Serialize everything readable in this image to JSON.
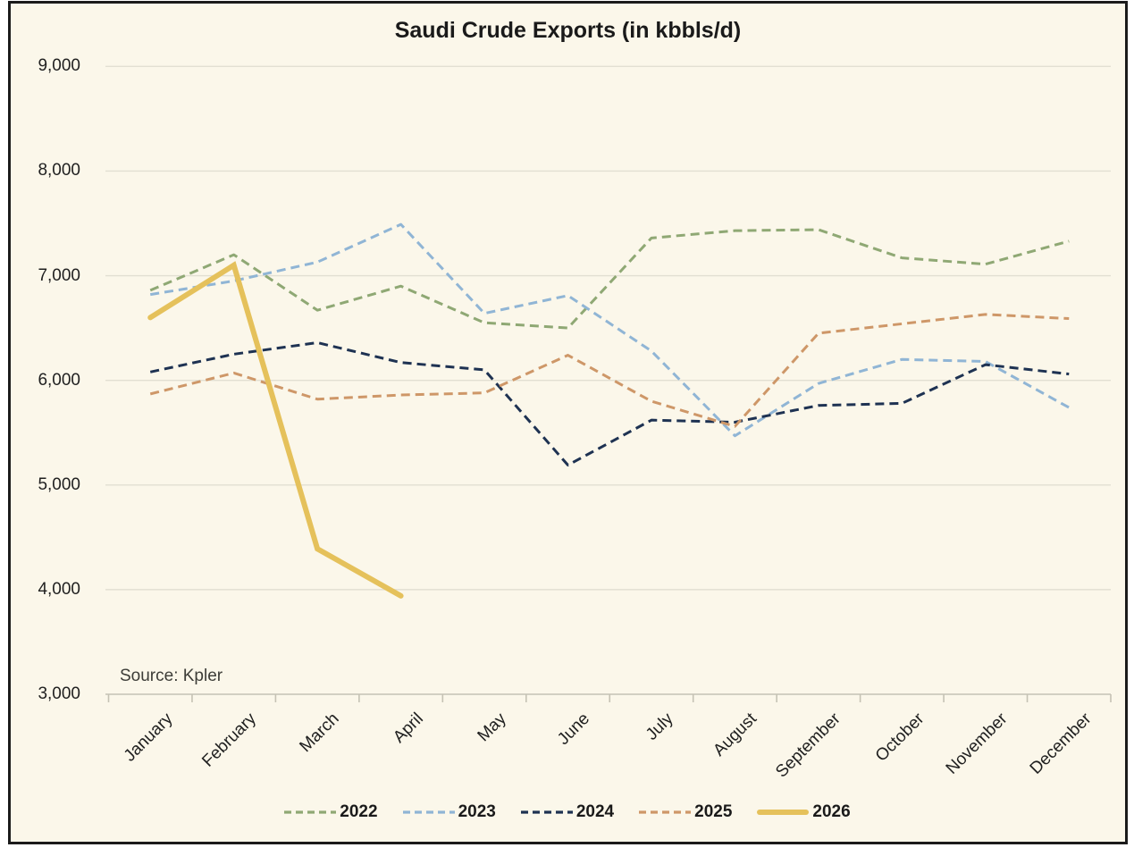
{
  "chart_data": {
    "type": "line",
    "title": "Saudi Crude Exports (in kbbls/d)",
    "source_note": "Source: Kpler",
    "categories": [
      "January",
      "February",
      "March",
      "April",
      "May",
      "June",
      "July",
      "August",
      "September",
      "October",
      "November",
      "December"
    ],
    "series": [
      {
        "name": "2022",
        "color": "#8FA874",
        "style": "dashed",
        "values": [
          6860,
          7200,
          6670,
          6900,
          6550,
          6500,
          7360,
          7430,
          7440,
          7170,
          7110,
          7330
        ]
      },
      {
        "name": "2023",
        "color": "#90B5D5",
        "style": "dashed",
        "values": [
          6820,
          6950,
          7130,
          7490,
          6640,
          6810,
          6280,
          5470,
          5970,
          6200,
          6180,
          5740
        ]
      },
      {
        "name": "2024",
        "color": "#1E3252",
        "style": "dashed",
        "values": [
          6080,
          6250,
          6360,
          6170,
          6100,
          5190,
          5620,
          5600,
          5760,
          5780,
          6150,
          6060
        ]
      },
      {
        "name": "2025",
        "color": "#CE9768",
        "style": "dashed",
        "values": [
          5870,
          6070,
          5820,
          5860,
          5880,
          6240,
          5800,
          5560,
          6450,
          6540,
          6630,
          6590
        ]
      },
      {
        "name": "2026",
        "color": "#E5C15B",
        "style": "solid",
        "values": [
          6600,
          7100,
          4390,
          3940
        ]
      }
    ],
    "ylim": [
      3000,
      9000
    ],
    "ytick_interval": 1000,
    "ytick_labels": [
      "3,000",
      "4,000",
      "5,000",
      "6,000",
      "7,000",
      "8,000",
      "9,000"
    ],
    "grid": "horizontal-only",
    "legend_position": "bottom",
    "background_color": "#FBF7EA",
    "gridline_color": "#E2DFD2",
    "axis_color": "#C5C2B4",
    "text_color": "#1f1f1f"
  }
}
